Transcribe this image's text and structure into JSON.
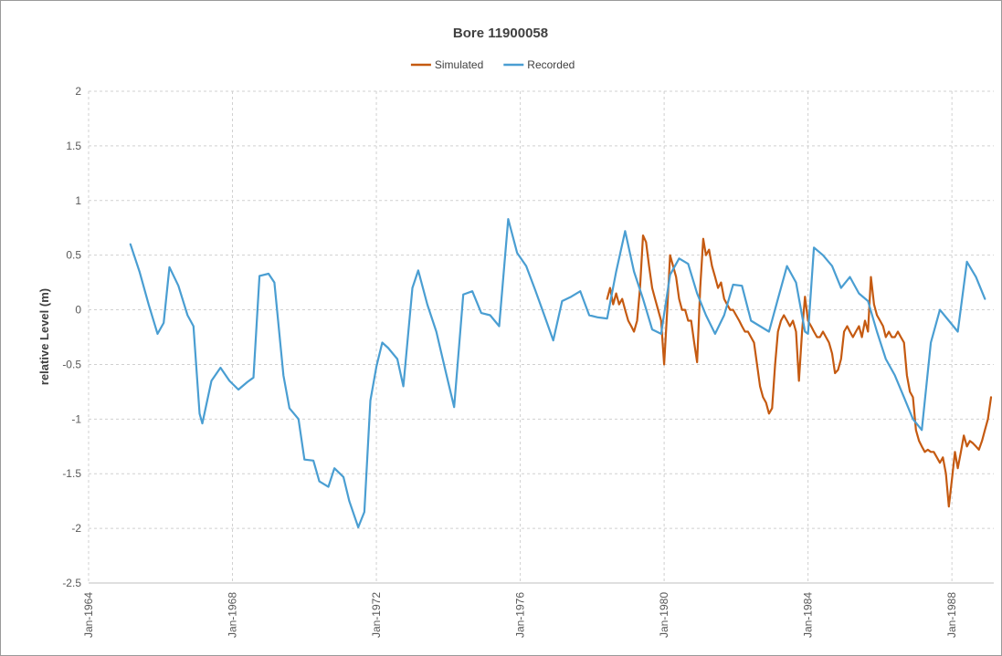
{
  "chart_data": {
    "type": "line",
    "title": "Bore 11900058",
    "xlabel": "",
    "ylabel": "relative Level (m)",
    "ylim": [
      -2.5,
      2
    ],
    "yticks": [
      2,
      1.5,
      1,
      0.5,
      0,
      -0.5,
      -1,
      -1.5,
      -2,
      -2.5
    ],
    "xlim": [
      "1964-01-01",
      "1989-03-01"
    ],
    "xticks": [
      {
        "date": "1964-01-01",
        "label": "Jan-1964"
      },
      {
        "date": "1968-01-01",
        "label": "Jan-1968"
      },
      {
        "date": "1972-01-01",
        "label": "Jan-1972"
      },
      {
        "date": "1976-01-01",
        "label": "Jan-1976"
      },
      {
        "date": "1980-01-01",
        "label": "Jan-1980"
      },
      {
        "date": "1984-01-01",
        "label": "Jan-1984"
      },
      {
        "date": "1988-01-01",
        "label": "Jan-1988"
      }
    ],
    "grid": true,
    "legend": "top-center",
    "series": [
      {
        "name": "Simulated",
        "color": "#C55A11",
        "points": [
          [
            "1978-06-01",
            0.1
          ],
          [
            "1978-07-01",
            0.2
          ],
          [
            "1978-08-01",
            0.05
          ],
          [
            "1978-09-01",
            0.15
          ],
          [
            "1978-10-01",
            0.05
          ],
          [
            "1978-11-01",
            0.1
          ],
          [
            "1978-12-01",
            0.0
          ],
          [
            "1979-01-01",
            -0.1
          ],
          [
            "1979-02-01",
            -0.15
          ],
          [
            "1979-03-01",
            -0.2
          ],
          [
            "1979-04-01",
            -0.1
          ],
          [
            "1979-05-01",
            0.2
          ],
          [
            "1979-06-01",
            0.68
          ],
          [
            "1979-07-01",
            0.62
          ],
          [
            "1979-08-01",
            0.4
          ],
          [
            "1979-09-01",
            0.2
          ],
          [
            "1979-10-01",
            0.1
          ],
          [
            "1979-11-01",
            0.0
          ],
          [
            "1979-12-01",
            -0.1
          ],
          [
            "1980-01-01",
            -0.5
          ],
          [
            "1980-02-01",
            0.0
          ],
          [
            "1980-03-01",
            0.5
          ],
          [
            "1980-04-01",
            0.4
          ],
          [
            "1980-05-01",
            0.3
          ],
          [
            "1980-06-01",
            0.1
          ],
          [
            "1980-07-01",
            0.0
          ],
          [
            "1980-08-01",
            0.0
          ],
          [
            "1980-09-01",
            -0.1
          ],
          [
            "1980-10-01",
            -0.1
          ],
          [
            "1980-11-01",
            -0.3
          ],
          [
            "1980-12-01",
            -0.48
          ],
          [
            "1981-01-01",
            0.2
          ],
          [
            "1981-02-01",
            0.65
          ],
          [
            "1981-03-01",
            0.5
          ],
          [
            "1981-04-01",
            0.55
          ],
          [
            "1981-05-01",
            0.4
          ],
          [
            "1981-06-01",
            0.3
          ],
          [
            "1981-07-01",
            0.2
          ],
          [
            "1981-08-01",
            0.25
          ],
          [
            "1981-09-01",
            0.1
          ],
          [
            "1981-10-01",
            0.05
          ],
          [
            "1981-11-01",
            0.0
          ],
          [
            "1981-12-01",
            0.0
          ],
          [
            "1982-01-01",
            -0.05
          ],
          [
            "1982-02-01",
            -0.1
          ],
          [
            "1982-03-01",
            -0.15
          ],
          [
            "1982-04-01",
            -0.2
          ],
          [
            "1982-05-01",
            -0.2
          ],
          [
            "1982-06-01",
            -0.25
          ],
          [
            "1982-07-01",
            -0.3
          ],
          [
            "1982-08-01",
            -0.5
          ],
          [
            "1982-09-01",
            -0.7
          ],
          [
            "1982-10-01",
            -0.8
          ],
          [
            "1982-11-01",
            -0.85
          ],
          [
            "1982-12-01",
            -0.95
          ],
          [
            "1983-01-01",
            -0.9
          ],
          [
            "1983-02-01",
            -0.5
          ],
          [
            "1983-03-01",
            -0.2
          ],
          [
            "1983-04-01",
            -0.1
          ],
          [
            "1983-05-01",
            -0.05
          ],
          [
            "1983-06-01",
            -0.1
          ],
          [
            "1983-07-01",
            -0.15
          ],
          [
            "1983-08-01",
            -0.1
          ],
          [
            "1983-09-01",
            -0.2
          ],
          [
            "1983-10-01",
            -0.65
          ],
          [
            "1983-11-01",
            -0.2
          ],
          [
            "1983-12-01",
            0.12
          ],
          [
            "1984-01-01",
            -0.1
          ],
          [
            "1984-02-01",
            -0.15
          ],
          [
            "1984-03-01",
            -0.2
          ],
          [
            "1984-04-01",
            -0.25
          ],
          [
            "1984-05-01",
            -0.25
          ],
          [
            "1984-06-01",
            -0.2
          ],
          [
            "1984-07-01",
            -0.25
          ],
          [
            "1984-08-01",
            -0.3
          ],
          [
            "1984-09-01",
            -0.4
          ],
          [
            "1984-10-01",
            -0.58
          ],
          [
            "1984-11-01",
            -0.55
          ],
          [
            "1984-12-01",
            -0.45
          ],
          [
            "1985-01-01",
            -0.2
          ],
          [
            "1985-02-01",
            -0.15
          ],
          [
            "1985-03-01",
            -0.2
          ],
          [
            "1985-04-01",
            -0.25
          ],
          [
            "1985-05-01",
            -0.2
          ],
          [
            "1985-06-01",
            -0.15
          ],
          [
            "1985-07-01",
            -0.25
          ],
          [
            "1985-08-01",
            -0.1
          ],
          [
            "1985-09-01",
            -0.2
          ],
          [
            "1985-10-01",
            0.3
          ],
          [
            "1985-11-01",
            0.05
          ],
          [
            "1985-12-01",
            -0.05
          ],
          [
            "1986-01-01",
            -0.1
          ],
          [
            "1986-02-01",
            -0.15
          ],
          [
            "1986-03-01",
            -0.25
          ],
          [
            "1986-04-01",
            -0.2
          ],
          [
            "1986-05-01",
            -0.25
          ],
          [
            "1986-06-01",
            -0.25
          ],
          [
            "1986-07-01",
            -0.2
          ],
          [
            "1986-08-01",
            -0.25
          ],
          [
            "1986-09-01",
            -0.3
          ],
          [
            "1986-10-01",
            -0.6
          ],
          [
            "1986-11-01",
            -0.75
          ],
          [
            "1986-12-01",
            -0.8
          ],
          [
            "1987-01-01",
            -1.1
          ],
          [
            "1987-02-01",
            -1.2
          ],
          [
            "1987-03-01",
            -1.25
          ],
          [
            "1987-04-01",
            -1.3
          ],
          [
            "1987-05-01",
            -1.28
          ],
          [
            "1987-06-01",
            -1.3
          ],
          [
            "1987-07-01",
            -1.3
          ],
          [
            "1987-08-01",
            -1.35
          ],
          [
            "1987-09-01",
            -1.4
          ],
          [
            "1987-10-01",
            -1.35
          ],
          [
            "1987-11-01",
            -1.5
          ],
          [
            "1987-12-01",
            -1.8
          ],
          [
            "1988-01-01",
            -1.55
          ],
          [
            "1988-02-01",
            -1.3
          ],
          [
            "1988-03-01",
            -1.45
          ],
          [
            "1988-04-01",
            -1.3
          ],
          [
            "1988-05-01",
            -1.15
          ],
          [
            "1988-06-01",
            -1.25
          ],
          [
            "1988-07-01",
            -1.2
          ],
          [
            "1988-08-01",
            -1.22
          ],
          [
            "1988-09-01",
            -1.25
          ],
          [
            "1988-10-01",
            -1.28
          ],
          [
            "1988-11-01",
            -1.2
          ],
          [
            "1988-12-01",
            -1.1
          ],
          [
            "1989-01-01",
            -1.0
          ],
          [
            "1989-02-01",
            -0.8
          ]
        ]
      },
      {
        "name": "Recorded",
        "color": "#4A9ED2",
        "points": [
          [
            "1965-03-01",
            0.6
          ],
          [
            "1965-06-01",
            0.35
          ],
          [
            "1965-09-01",
            0.05
          ],
          [
            "1965-12-01",
            -0.22
          ],
          [
            "1966-02-01",
            -0.12
          ],
          [
            "1966-04-01",
            0.39
          ],
          [
            "1966-07-01",
            0.22
          ],
          [
            "1966-10-01",
            -0.05
          ],
          [
            "1966-12-01",
            -0.15
          ],
          [
            "1967-02-01",
            -0.95
          ],
          [
            "1967-03-01",
            -1.04
          ],
          [
            "1967-06-01",
            -0.65
          ],
          [
            "1967-09-01",
            -0.53
          ],
          [
            "1967-12-01",
            -0.65
          ],
          [
            "1968-03-01",
            -0.73
          ],
          [
            "1968-06-01",
            -0.66
          ],
          [
            "1968-08-01",
            -0.62
          ],
          [
            "1968-10-01",
            0.31
          ],
          [
            "1969-01-01",
            0.33
          ],
          [
            "1969-03-01",
            0.25
          ],
          [
            "1969-06-01",
            -0.6
          ],
          [
            "1969-08-01",
            -0.9
          ],
          [
            "1969-11-01",
            -1.0
          ],
          [
            "1970-01-01",
            -1.37
          ],
          [
            "1970-04-01",
            -1.38
          ],
          [
            "1970-06-01",
            -1.57
          ],
          [
            "1970-09-01",
            -1.62
          ],
          [
            "1970-11-01",
            -1.45
          ],
          [
            "1971-02-01",
            -1.53
          ],
          [
            "1971-04-01",
            -1.75
          ],
          [
            "1971-07-01",
            -1.99
          ],
          [
            "1971-09-01",
            -1.85
          ],
          [
            "1971-11-01",
            -0.83
          ],
          [
            "1972-01-01",
            -0.52
          ],
          [
            "1972-03-01",
            -0.3
          ],
          [
            "1972-05-01",
            -0.35
          ],
          [
            "1972-08-01",
            -0.45
          ],
          [
            "1972-10-01",
            -0.7
          ],
          [
            "1973-01-01",
            0.2
          ],
          [
            "1973-03-01",
            0.36
          ],
          [
            "1973-06-01",
            0.05
          ],
          [
            "1973-09-01",
            -0.2
          ],
          [
            "1973-12-01",
            -0.55
          ],
          [
            "1974-03-01",
            -0.89
          ],
          [
            "1974-06-01",
            0.14
          ],
          [
            "1974-09-01",
            0.17
          ],
          [
            "1974-12-01",
            -0.03
          ],
          [
            "1975-03-01",
            -0.05
          ],
          [
            "1975-06-01",
            -0.15
          ],
          [
            "1975-09-01",
            0.83
          ],
          [
            "1975-12-01",
            0.52
          ],
          [
            "1976-03-01",
            0.4
          ],
          [
            "1976-06-01",
            0.18
          ],
          [
            "1976-09-01",
            -0.05
          ],
          [
            "1976-12-01",
            -0.28
          ],
          [
            "1977-03-01",
            0.08
          ],
          [
            "1977-06-01",
            0.12
          ],
          [
            "1977-09-01",
            0.17
          ],
          [
            "1977-12-01",
            -0.05
          ],
          [
            "1978-03-01",
            -0.07
          ],
          [
            "1978-06-01",
            -0.08
          ],
          [
            "1978-09-01",
            0.35
          ],
          [
            "1978-12-01",
            0.72
          ],
          [
            "1979-03-01",
            0.35
          ],
          [
            "1979-06-01",
            0.1
          ],
          [
            "1979-09-01",
            -0.18
          ],
          [
            "1979-12-01",
            -0.22
          ],
          [
            "1980-03-01",
            0.32
          ],
          [
            "1980-06-01",
            0.47
          ],
          [
            "1980-09-01",
            0.42
          ],
          [
            "1980-12-01",
            0.15
          ],
          [
            "1981-03-01",
            -0.05
          ],
          [
            "1981-06-01",
            -0.22
          ],
          [
            "1981-09-01",
            -0.05
          ],
          [
            "1981-12-01",
            0.23
          ],
          [
            "1982-03-01",
            0.22
          ],
          [
            "1982-06-01",
            -0.1
          ],
          [
            "1982-09-01",
            -0.15
          ],
          [
            "1982-12-01",
            -0.2
          ],
          [
            "1983-03-01",
            0.1
          ],
          [
            "1983-06-01",
            0.4
          ],
          [
            "1983-09-01",
            0.25
          ],
          [
            "1983-12-01",
            -0.2
          ],
          [
            "1984-01-01",
            -0.22
          ],
          [
            "1984-03-01",
            0.57
          ],
          [
            "1984-06-01",
            0.5
          ],
          [
            "1984-09-01",
            0.4
          ],
          [
            "1984-12-01",
            0.2
          ],
          [
            "1985-03-01",
            0.3
          ],
          [
            "1985-06-01",
            0.15
          ],
          [
            "1985-09-01",
            0.08
          ],
          [
            "1985-12-01",
            -0.2
          ],
          [
            "1986-03-01",
            -0.45
          ],
          [
            "1986-06-01",
            -0.6
          ],
          [
            "1986-09-01",
            -0.8
          ],
          [
            "1986-12-01",
            -1.0
          ],
          [
            "1987-03-01",
            -1.1
          ],
          [
            "1987-06-01",
            -0.3
          ],
          [
            "1987-09-01",
            0.0
          ],
          [
            "1987-12-01",
            -0.1
          ],
          [
            "1988-03-01",
            -0.2
          ],
          [
            "1988-06-01",
            0.44
          ],
          [
            "1988-09-01",
            0.3
          ],
          [
            "1988-12-01",
            0.1
          ]
        ]
      }
    ]
  }
}
